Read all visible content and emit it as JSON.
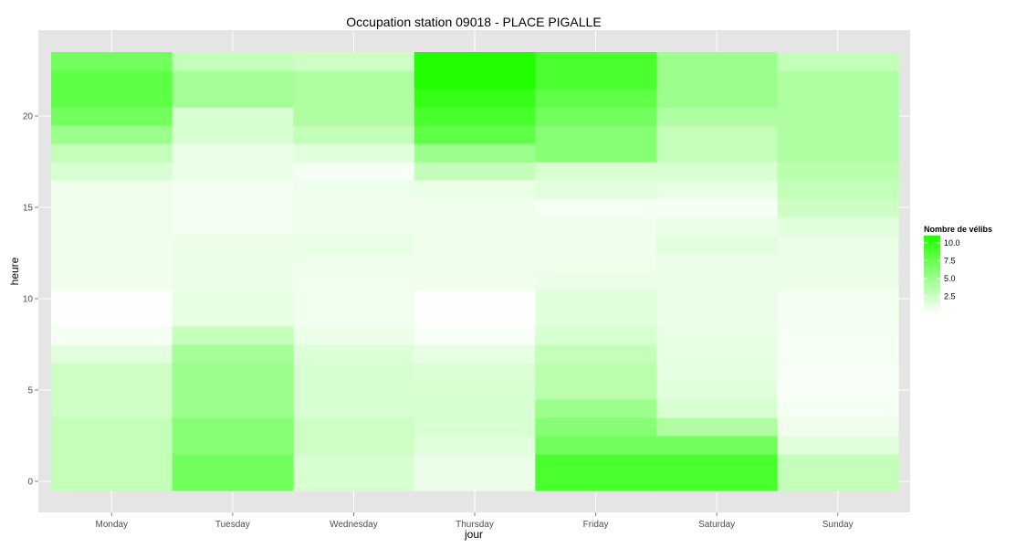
{
  "chart_data": {
    "type": "heatmap",
    "title": "Occupation station 09018 - PLACE PIGALLE",
    "xlabel": "jour",
    "ylabel": "heure",
    "x_categories": [
      "Monday",
      "Tuesday",
      "Wednesday",
      "Thursday",
      "Friday",
      "Saturday",
      "Sunday"
    ],
    "y_values": [
      0,
      1,
      2,
      3,
      4,
      5,
      6,
      7,
      8,
      9,
      10,
      11,
      12,
      13,
      14,
      15,
      16,
      17,
      18,
      19,
      20,
      21,
      22,
      23
    ],
    "y_ticks": [
      0,
      5,
      10,
      15,
      20
    ],
    "ylim": [
      -0.5,
      23.5
    ],
    "grid": true,
    "values": [
      [
        3.0,
        7.0,
        2.0,
        1.0,
        9.0,
        9.0,
        3.0
      ],
      [
        3.0,
        7.0,
        2.0,
        1.0,
        9.0,
        9.0,
        3.0
      ],
      [
        3.0,
        6.0,
        2.5,
        1.5,
        7.0,
        7.0,
        1.5
      ],
      [
        3.0,
        6.0,
        2.5,
        2.0,
        6.0,
        4.0,
        0.8
      ],
      [
        2.5,
        5.0,
        2.0,
        2.0,
        5.0,
        2.0,
        0.5
      ],
      [
        2.5,
        5.0,
        2.0,
        2.0,
        3.5,
        1.5,
        0.4
      ],
      [
        2.5,
        5.0,
        2.0,
        1.8,
        3.5,
        1.3,
        0.4
      ],
      [
        1.5,
        4.5,
        1.7,
        1.2,
        3.0,
        1.2,
        0.5
      ],
      [
        0.5,
        3.0,
        1.0,
        0.3,
        2.0,
        1.2,
        0.5
      ],
      [
        0.1,
        1.2,
        0.7,
        0.1,
        1.5,
        1.0,
        0.6
      ],
      [
        0.1,
        1.2,
        0.7,
        0.1,
        1.5,
        1.0,
        0.6
      ],
      [
        0.8,
        1.0,
        0.7,
        0.8,
        1.0,
        1.0,
        1.0
      ],
      [
        0.8,
        1.0,
        0.9,
        0.8,
        0.8,
        1.0,
        1.0
      ],
      [
        0.8,
        1.0,
        1.2,
        0.8,
        0.8,
        1.5,
        1.0
      ],
      [
        0.8,
        0.6,
        0.9,
        0.8,
        0.8,
        1.0,
        1.5
      ],
      [
        0.8,
        0.6,
        0.9,
        0.8,
        0.5,
        0.5,
        2.5
      ],
      [
        0.8,
        0.6,
        0.9,
        1.0,
        1.5,
        1.2,
        3.0
      ],
      [
        2.0,
        1.0,
        0.5,
        3.0,
        2.0,
        2.0,
        3.5
      ],
      [
        3.0,
        1.0,
        1.5,
        5.0,
        6.0,
        3.0,
        4.0
      ],
      [
        5.0,
        2.0,
        3.0,
        8.0,
        6.0,
        3.0,
        4.0
      ],
      [
        7.0,
        2.0,
        4.0,
        9.0,
        7.0,
        4.0,
        4.0
      ],
      [
        8.0,
        4.5,
        4.0,
        10.0,
        8.0,
        5.0,
        4.0
      ],
      [
        8.0,
        4.5,
        4.0,
        11.0,
        9.0,
        5.0,
        4.0
      ],
      [
        7.0,
        3.0,
        2.5,
        11.0,
        9.0,
        5.0,
        3.0
      ]
    ],
    "legend": {
      "title": "Nombre de vélibs",
      "ticks": [
        2.5,
        5.0,
        7.5,
        10.0
      ],
      "tick_labels": [
        "2.5",
        "5.0",
        "7.5",
        "10.0"
      ],
      "min": 0,
      "max": 11,
      "placement": "right"
    },
    "colors": {
      "low": "#ffffff",
      "high": "#22ff00",
      "panel": "#e5e5e5",
      "grid": "#ffffff"
    }
  }
}
